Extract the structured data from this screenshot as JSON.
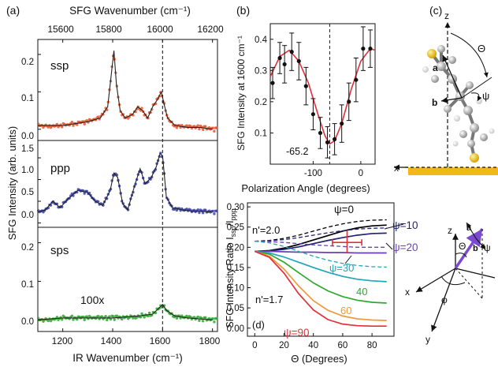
{
  "panels": {
    "a": {
      "label": "(a)",
      "top_axis_label": "SFG Wavenumber (cm⁻¹)",
      "top_ticks": [
        "15600",
        "15800",
        "16000",
        "16200"
      ],
      "bottom_axis_label": "IR Wavenumber (cm⁻¹)",
      "bottom_ticks": [
        "1200",
        "1400",
        "1600",
        "1800"
      ],
      "y_label": "SFG Intensity (arb. units)",
      "annotation": "100x",
      "subplots": [
        {
          "name": "ssp",
          "ticks": [
            "0.2",
            "0.1",
            "0.0"
          ],
          "color": "#e8542b"
        },
        {
          "name": "ppp",
          "ticks": [
            "1.5",
            "1.0",
            "0.5",
            "0.0"
          ],
          "color": "#3b3fa8"
        },
        {
          "name": "sps",
          "ticks": [
            "0.2",
            "0.1",
            "0.0"
          ],
          "color": "#2ea82e"
        }
      ]
    },
    "b": {
      "label": "(b)",
      "x_label": "Polarization Angle (degrees)",
      "y_label": "SFG Intensity at 1600 cm⁻¹",
      "annotation": "-65.2"
    },
    "c": {
      "label": "(c)",
      "labels": [
        "z",
        "Θ",
        "a",
        "ψ",
        "b",
        "x"
      ],
      "axes_labels": [
        "z",
        "a",
        "b",
        "Θ",
        "ψ",
        "x",
        "φ",
        "y"
      ]
    },
    "d": {
      "label": "(d)",
      "x_label": "Θ (Degrees)",
      "y_label": "SFG Intensity Ratio I",
      "y_label_sub1": "ssp",
      "y_label_mid": "/I",
      "y_label_sub2": "ppp",
      "n1": "n'=2.0",
      "n2": "n'=1.7",
      "psi_labels": [
        "ψ=0",
        "ψ=10",
        "ψ=20",
        "ψ=30",
        "40",
        "60",
        "ψ=90"
      ]
    }
  },
  "chart_data": [
    {
      "type": "line",
      "panel": "a",
      "xlabel": "IR Wavenumber (cm⁻¹)",
      "ylabel": "SFG Intensity (arb. units)",
      "xlim": [
        1100,
        1820
      ],
      "subplots": [
        {
          "name": "ssp",
          "ylim": [
            -0.03,
            0.24
          ],
          "yticks": [
            0.0,
            0.1,
            0.2
          ],
          "x": [
            1100,
            1150,
            1200,
            1250,
            1300,
            1350,
            1380,
            1395,
            1405,
            1415,
            1430,
            1450,
            1480,
            1500,
            1520,
            1540,
            1560,
            1580,
            1595,
            1605,
            1620,
            1650,
            1700,
            1750,
            1800
          ],
          "y": [
            0.01,
            0.01,
            0.01,
            0.015,
            0.02,
            0.03,
            0.06,
            0.15,
            0.21,
            0.12,
            0.05,
            0.03,
            0.04,
            0.06,
            0.05,
            0.03,
            0.06,
            0.08,
            0.1,
            0.07,
            0.03,
            0.01,
            0.005,
            0.005,
            0.0
          ]
        },
        {
          "name": "ppp",
          "ylim": [
            -0.1,
            1.9
          ],
          "yticks": [
            0.0,
            0.5,
            1.0,
            1.5
          ],
          "x": [
            1100,
            1130,
            1160,
            1190,
            1220,
            1260,
            1300,
            1330,
            1360,
            1390,
            1405,
            1420,
            1440,
            1460,
            1490,
            1510,
            1530,
            1555,
            1575,
            1590,
            1600,
            1615,
            1640,
            1680,
            1720,
            1760,
            1800
          ],
          "y": [
            0.25,
            0.3,
            0.5,
            0.35,
            0.55,
            0.75,
            0.7,
            0.5,
            0.4,
            0.75,
            1.15,
            1.05,
            0.45,
            0.3,
            0.9,
            1.25,
            0.9,
            1.05,
            1.3,
            1.6,
            1.55,
            0.6,
            0.35,
            0.3,
            0.27,
            0.27,
            0.25
          ]
        },
        {
          "name": "sps",
          "ylim": [
            -0.03,
            0.24
          ],
          "yticks": [
            0.0,
            0.1,
            0.2
          ],
          "x": [
            1100,
            1200,
            1300,
            1400,
            1500,
            1560,
            1585,
            1600,
            1615,
            1650,
            1700,
            1800
          ],
          "y": [
            0.0,
            0.005,
            0.005,
            0.005,
            0.01,
            0.015,
            0.03,
            0.04,
            0.025,
            0.01,
            0.005,
            0.0
          ]
        }
      ],
      "marker_x": 1600
    },
    {
      "type": "scatter",
      "panel": "b",
      "xlabel": "Polarization Angle (degrees)",
      "ylabel": "SFG Intensity at 1600 cm⁻¹",
      "xlim": [
        -190,
        30
      ],
      "ylim": [
        0.0,
        0.45
      ],
      "xticks": [
        -100,
        0
      ],
      "yticks": [
        0.1,
        0.2,
        0.3,
        0.4
      ],
      "points": {
        "x": [
          -185,
          -170,
          -160,
          -145,
          -130,
          -115,
          -100,
          -85,
          -70,
          -55,
          -40,
          -25,
          -10,
          5,
          20
        ],
        "y": [
          0.26,
          0.34,
          0.32,
          0.36,
          0.33,
          0.25,
          0.16,
          0.1,
          0.07,
          0.08,
          0.13,
          0.2,
          0.27,
          0.37,
          0.37
        ],
        "err": [
          0.05,
          0.05,
          0.06,
          0.06,
          0.06,
          0.06,
          0.05,
          0.05,
          0.05,
          0.05,
          0.06,
          0.06,
          0.07,
          0.07,
          0.06
        ]
      },
      "fit": {
        "x": [
          -190,
          -170,
          -150,
          -130,
          -110,
          -90,
          -75,
          -65,
          -55,
          -40,
          -20,
          0,
          20,
          30
        ],
        "y": [
          0.28,
          0.345,
          0.365,
          0.33,
          0.26,
          0.16,
          0.09,
          0.065,
          0.075,
          0.13,
          0.24,
          0.33,
          0.37,
          0.365
        ]
      },
      "min_angle": -65.2
    },
    {
      "type": "line",
      "panel": "d",
      "xlabel": "Θ (Degrees)",
      "ylabel": "SFG Intensity Ratio I_ssp/I_ppp",
      "xlim": [
        -5,
        95
      ],
      "ylim": [
        -0.02,
        0.31
      ],
      "xticks": [
        0,
        20,
        40,
        60,
        80
      ],
      "yticks": [
        0.0,
        0.05,
        0.1,
        0.15,
        0.2,
        0.25,
        0.3
      ],
      "x": [
        0,
        10,
        20,
        30,
        40,
        50,
        60,
        70,
        80,
        90
      ],
      "series": [
        {
          "name": "ψ=0",
          "values": [
            0.19,
            0.192,
            0.198,
            0.207,
            0.218,
            0.229,
            0.24,
            0.248,
            0.253,
            0.255
          ],
          "color": "#000000"
        },
        {
          "name": "ψ=10",
          "values": [
            0.19,
            0.191,
            0.195,
            0.201,
            0.209,
            0.217,
            0.224,
            0.23,
            0.234,
            0.235
          ],
          "color": "#22227a"
        },
        {
          "name": "ψ=20",
          "values": [
            0.19,
            0.19,
            0.189,
            0.188,
            0.188,
            0.187,
            0.187,
            0.186,
            0.186,
            0.186
          ],
          "color": "#6a3fb8"
        },
        {
          "name": "ψ=30",
          "values": [
            0.19,
            0.186,
            0.176,
            0.163,
            0.15,
            0.138,
            0.128,
            0.121,
            0.117,
            0.115
          ],
          "color": "#1fa7b8"
        },
        {
          "name": "40",
          "values": [
            0.19,
            0.183,
            0.163,
            0.137,
            0.112,
            0.092,
            0.078,
            0.069,
            0.064,
            0.062
          ],
          "color": "#2ea82e"
        },
        {
          "name": "60",
          "values": [
            0.19,
            0.178,
            0.146,
            0.104,
            0.068,
            0.044,
            0.03,
            0.023,
            0.02,
            0.019
          ],
          "color": "#f29a3a"
        },
        {
          "name": "ψ=90",
          "values": [
            0.19,
            0.175,
            0.136,
            0.085,
            0.045,
            0.021,
            0.01,
            0.006,
            0.005,
            0.005
          ],
          "color": "#e0303a"
        },
        {
          "name": "",
          "style": "dashed",
          "values": [
            0.215,
            0.217,
            0.222,
            0.23,
            0.24,
            0.25,
            0.258,
            0.264,
            0.267,
            0.268
          ],
          "color": "#000000"
        },
        {
          "name": "",
          "style": "dashed",
          "values": [
            0.215,
            0.216,
            0.219,
            0.224,
            0.23,
            0.236,
            0.241,
            0.245,
            0.247,
            0.248
          ],
          "color": "#22227a"
        },
        {
          "name": "",
          "style": "dashed",
          "values": [
            0.215,
            0.214,
            0.212,
            0.209,
            0.206,
            0.204,
            0.202,
            0.2,
            0.2,
            0.2
          ],
          "color": "#6a3fb8"
        },
        {
          "name": "",
          "style": "dashed",
          "values": [
            0.215,
            0.211,
            0.202,
            0.19,
            0.178,
            0.168,
            0.16,
            0.155,
            0.152,
            0.151
          ],
          "color": "#1fa7b8"
        }
      ],
      "measurement": {
        "x": 63,
        "x_range": [
          53,
          73
        ],
        "y": 0.212,
        "y_range": [
          0.185,
          0.24
        ],
        "color": "#e0303a"
      }
    }
  ]
}
